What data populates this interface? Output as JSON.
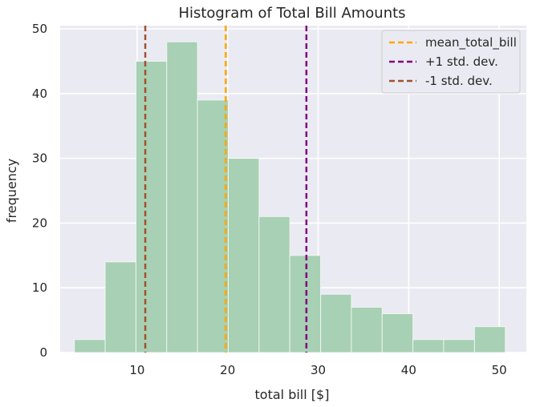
{
  "chart_data": {
    "type": "bar",
    "title": "Histogram of Total Bill Amounts",
    "xlabel": "total bill [$]",
    "ylabel": "frequency",
    "xlim": [
      1.5,
      53
    ],
    "ylim": [
      0,
      50.5
    ],
    "xticks": [
      10,
      20,
      30,
      40,
      50
    ],
    "yticks": [
      0,
      10,
      20,
      30,
      40,
      50
    ],
    "bin_edges": [
      3.07,
      6.47,
      9.87,
      13.27,
      16.67,
      20.07,
      23.47,
      26.87,
      30.27,
      33.67,
      37.07,
      40.47,
      43.87,
      47.27,
      50.67
    ],
    "values": [
      2,
      14,
      45,
      48,
      39,
      30,
      21,
      15,
      9,
      7,
      6,
      2,
      2,
      4
    ],
    "bar_color": "#a8d0b4",
    "vertical_lines": [
      {
        "name": "mean_total_bill",
        "x": 19.79,
        "color": "#ffa500"
      },
      {
        "name": "+1 std. dev.",
        "x": 28.7,
        "color": "#800080"
      },
      {
        "name": "-1 std. dev.",
        "x": 10.9,
        "color": "#a0522d"
      }
    ],
    "legend_position": "top-right",
    "grid": true,
    "background": "#eaeaf2"
  }
}
